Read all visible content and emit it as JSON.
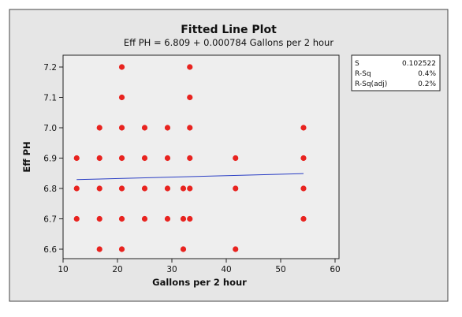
{
  "chart_data": {
    "type": "scatter",
    "title": "Fitted Line Plot",
    "subtitle": "Eff PH =  6.809 + 0.000784 Gallons per 2 hour",
    "xlabel": "Gallons per 2 hour",
    "ylabel": "Eff PH",
    "xlim": [
      10,
      60
    ],
    "ylim": [
      6.6,
      7.2
    ],
    "x_ticks": [
      "10",
      "20",
      "30",
      "40",
      "50",
      "60"
    ],
    "y_ticks": [
      "6.6",
      "6.7",
      "6.8",
      "6.9",
      "7.0",
      "7.1",
      "7.2"
    ],
    "grid": false,
    "colors": {
      "points": "#e8231f",
      "fit_line": "#2a3ec4",
      "plot_bg": "#eeeeee",
      "frame_bg": "#e6e6e6"
    },
    "points": [
      {
        "x": 12.5,
        "y": 6.9
      },
      {
        "x": 12.5,
        "y": 6.8
      },
      {
        "x": 12.5,
        "y": 6.7
      },
      {
        "x": 16.7,
        "y": 7.0
      },
      {
        "x": 16.7,
        "y": 6.9
      },
      {
        "x": 16.7,
        "y": 6.8
      },
      {
        "x": 16.7,
        "y": 6.7
      },
      {
        "x": 16.7,
        "y": 6.6
      },
      {
        "x": 20.8,
        "y": 7.2
      },
      {
        "x": 20.8,
        "y": 7.1
      },
      {
        "x": 20.8,
        "y": 7.0
      },
      {
        "x": 20.8,
        "y": 6.9
      },
      {
        "x": 20.8,
        "y": 6.8
      },
      {
        "x": 20.8,
        "y": 6.7
      },
      {
        "x": 20.8,
        "y": 6.6
      },
      {
        "x": 25.0,
        "y": 7.0
      },
      {
        "x": 25.0,
        "y": 6.9
      },
      {
        "x": 25.0,
        "y": 6.8
      },
      {
        "x": 25.0,
        "y": 6.7
      },
      {
        "x": 29.2,
        "y": 7.0
      },
      {
        "x": 29.2,
        "y": 6.9
      },
      {
        "x": 29.2,
        "y": 6.8
      },
      {
        "x": 29.2,
        "y": 6.7
      },
      {
        "x": 32.1,
        "y": 6.8
      },
      {
        "x": 32.1,
        "y": 6.7
      },
      {
        "x": 32.1,
        "y": 6.6
      },
      {
        "x": 33.3,
        "y": 7.2
      },
      {
        "x": 33.3,
        "y": 7.1
      },
      {
        "x": 33.3,
        "y": 7.0
      },
      {
        "x": 33.3,
        "y": 6.9
      },
      {
        "x": 33.3,
        "y": 6.8
      },
      {
        "x": 33.3,
        "y": 6.7
      },
      {
        "x": 41.7,
        "y": 6.9
      },
      {
        "x": 41.7,
        "y": 6.8
      },
      {
        "x": 41.7,
        "y": 6.6
      },
      {
        "x": 54.2,
        "y": 7.0
      },
      {
        "x": 54.2,
        "y": 6.9
      },
      {
        "x": 54.2,
        "y": 6.8
      },
      {
        "x": 54.2,
        "y": 6.7
      }
    ],
    "fit": {
      "intercept": 6.809,
      "slope": 0.000784,
      "x_range": [
        12.5,
        54.2
      ]
    },
    "stats": [
      {
        "label": "S",
        "value": "0.102522"
      },
      {
        "label": "R-Sq",
        "value": "0.4%"
      },
      {
        "label": "R-Sq(adj)",
        "value": "0.2%"
      }
    ]
  }
}
